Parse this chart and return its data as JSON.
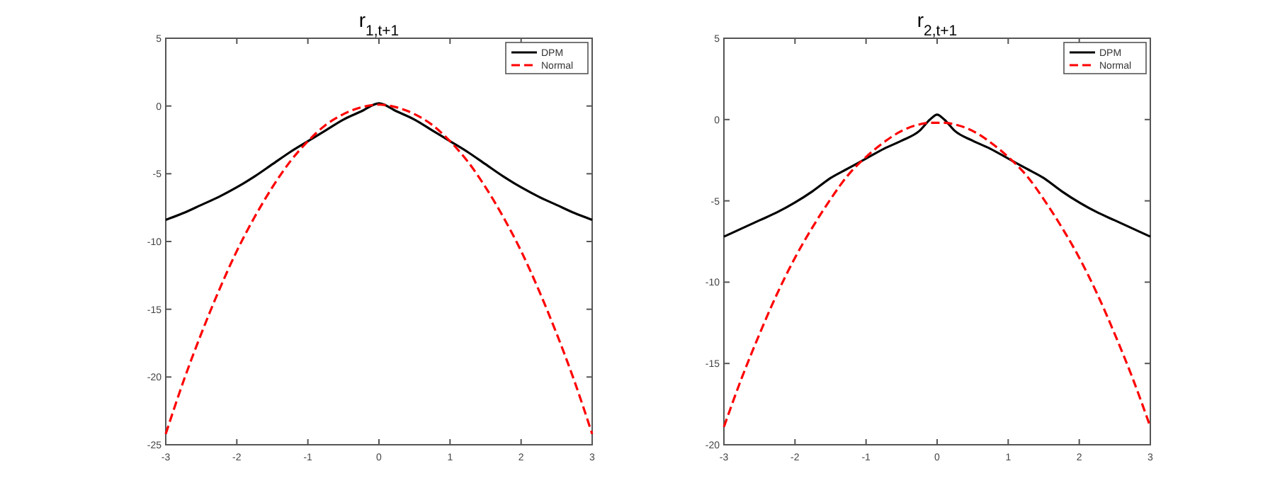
{
  "chart_data": [
    {
      "type": "line",
      "title": "r$_{1,t+1}$",
      "x": [
        -3,
        -2.75,
        -2.5,
        -2.25,
        -2,
        -1.75,
        -1.5,
        -1.25,
        -1,
        -0.75,
        -0.5,
        -0.25,
        0,
        0.25,
        0.5,
        0.75,
        1,
        1.25,
        1.5,
        1.75,
        2,
        2.25,
        2.5,
        2.75,
        3
      ],
      "series": [
        {
          "name": "DPM",
          "color": "#000000",
          "line_style": "solid",
          "values": [
            -8.4,
            -7.9,
            -7.3,
            -6.7,
            -6.0,
            -5.2,
            -4.3,
            -3.4,
            -2.6,
            -1.8,
            -1.0,
            -0.4,
            0.2,
            -0.4,
            -1.0,
            -1.8,
            -2.6,
            -3.4,
            -4.3,
            -5.2,
            -6.0,
            -6.7,
            -7.3,
            -7.9,
            -8.4
          ]
        },
        {
          "name": "Normal",
          "color": "#ff0000",
          "line_style": "dashed",
          "values": [
            -24.2,
            -20.3,
            -16.8,
            -13.6,
            -10.7,
            -8.2,
            -6.0,
            -4.1,
            -2.6,
            -1.4,
            -0.6,
            -0.1,
            0.1,
            -0.1,
            -0.6,
            -1.4,
            -2.6,
            -4.1,
            -6.0,
            -8.2,
            -10.7,
            -13.6,
            -16.8,
            -20.3,
            -24.2
          ]
        }
      ],
      "xlim": [
        -3,
        3
      ],
      "xticks": [
        -3,
        -2,
        -1,
        0,
        1,
        2,
        3
      ],
      "ylim": [
        -25,
        5
      ],
      "yticks": [
        -25,
        -20,
        -15,
        -10,
        -5,
        0,
        5
      ],
      "grid": false,
      "legend": "top right"
    },
    {
      "type": "line",
      "title": "r$_{2,t+1}$",
      "x": [
        -3,
        -2.75,
        -2.5,
        -2.25,
        -2,
        -1.75,
        -1.5,
        -1.25,
        -1,
        -0.75,
        -0.5,
        -0.25,
        -0.1,
        0,
        0.1,
        0.25,
        0.5,
        0.75,
        1,
        1.25,
        1.5,
        1.75,
        2,
        2.25,
        2.5,
        2.75,
        3
      ],
      "series": [
        {
          "name": "DPM",
          "color": "#000000",
          "line_style": "solid",
          "values": [
            -7.2,
            -6.7,
            -6.2,
            -5.7,
            -5.1,
            -4.4,
            -3.6,
            -3.0,
            -2.4,
            -1.8,
            -1.3,
            -0.7,
            0.0,
            0.3,
            0.0,
            -0.7,
            -1.3,
            -1.8,
            -2.4,
            -3.0,
            -3.6,
            -4.4,
            -5.1,
            -5.7,
            -6.2,
            -6.7,
            -7.2
          ]
        },
        {
          "name": "Normal",
          "color": "#ff0000",
          "line_style": "dashed",
          "values": [
            -18.9,
            -15.9,
            -13.2,
            -10.7,
            -8.5,
            -6.6,
            -4.9,
            -3.4,
            -2.3,
            -1.4,
            -0.7,
            -0.3,
            -0.2,
            -0.2,
            -0.2,
            -0.3,
            -0.7,
            -1.4,
            -2.3,
            -3.4,
            -4.9,
            -6.6,
            -8.5,
            -10.7,
            -13.2,
            -15.9,
            -18.9
          ]
        }
      ],
      "xlim": [
        -3,
        3
      ],
      "xticks": [
        -3,
        -2,
        -1,
        0,
        1,
        2,
        3
      ],
      "ylim": [
        -20,
        5
      ],
      "yticks": [
        -20,
        -15,
        -10,
        -5,
        0,
        5
      ],
      "grid": false,
      "legend": "top right"
    }
  ]
}
